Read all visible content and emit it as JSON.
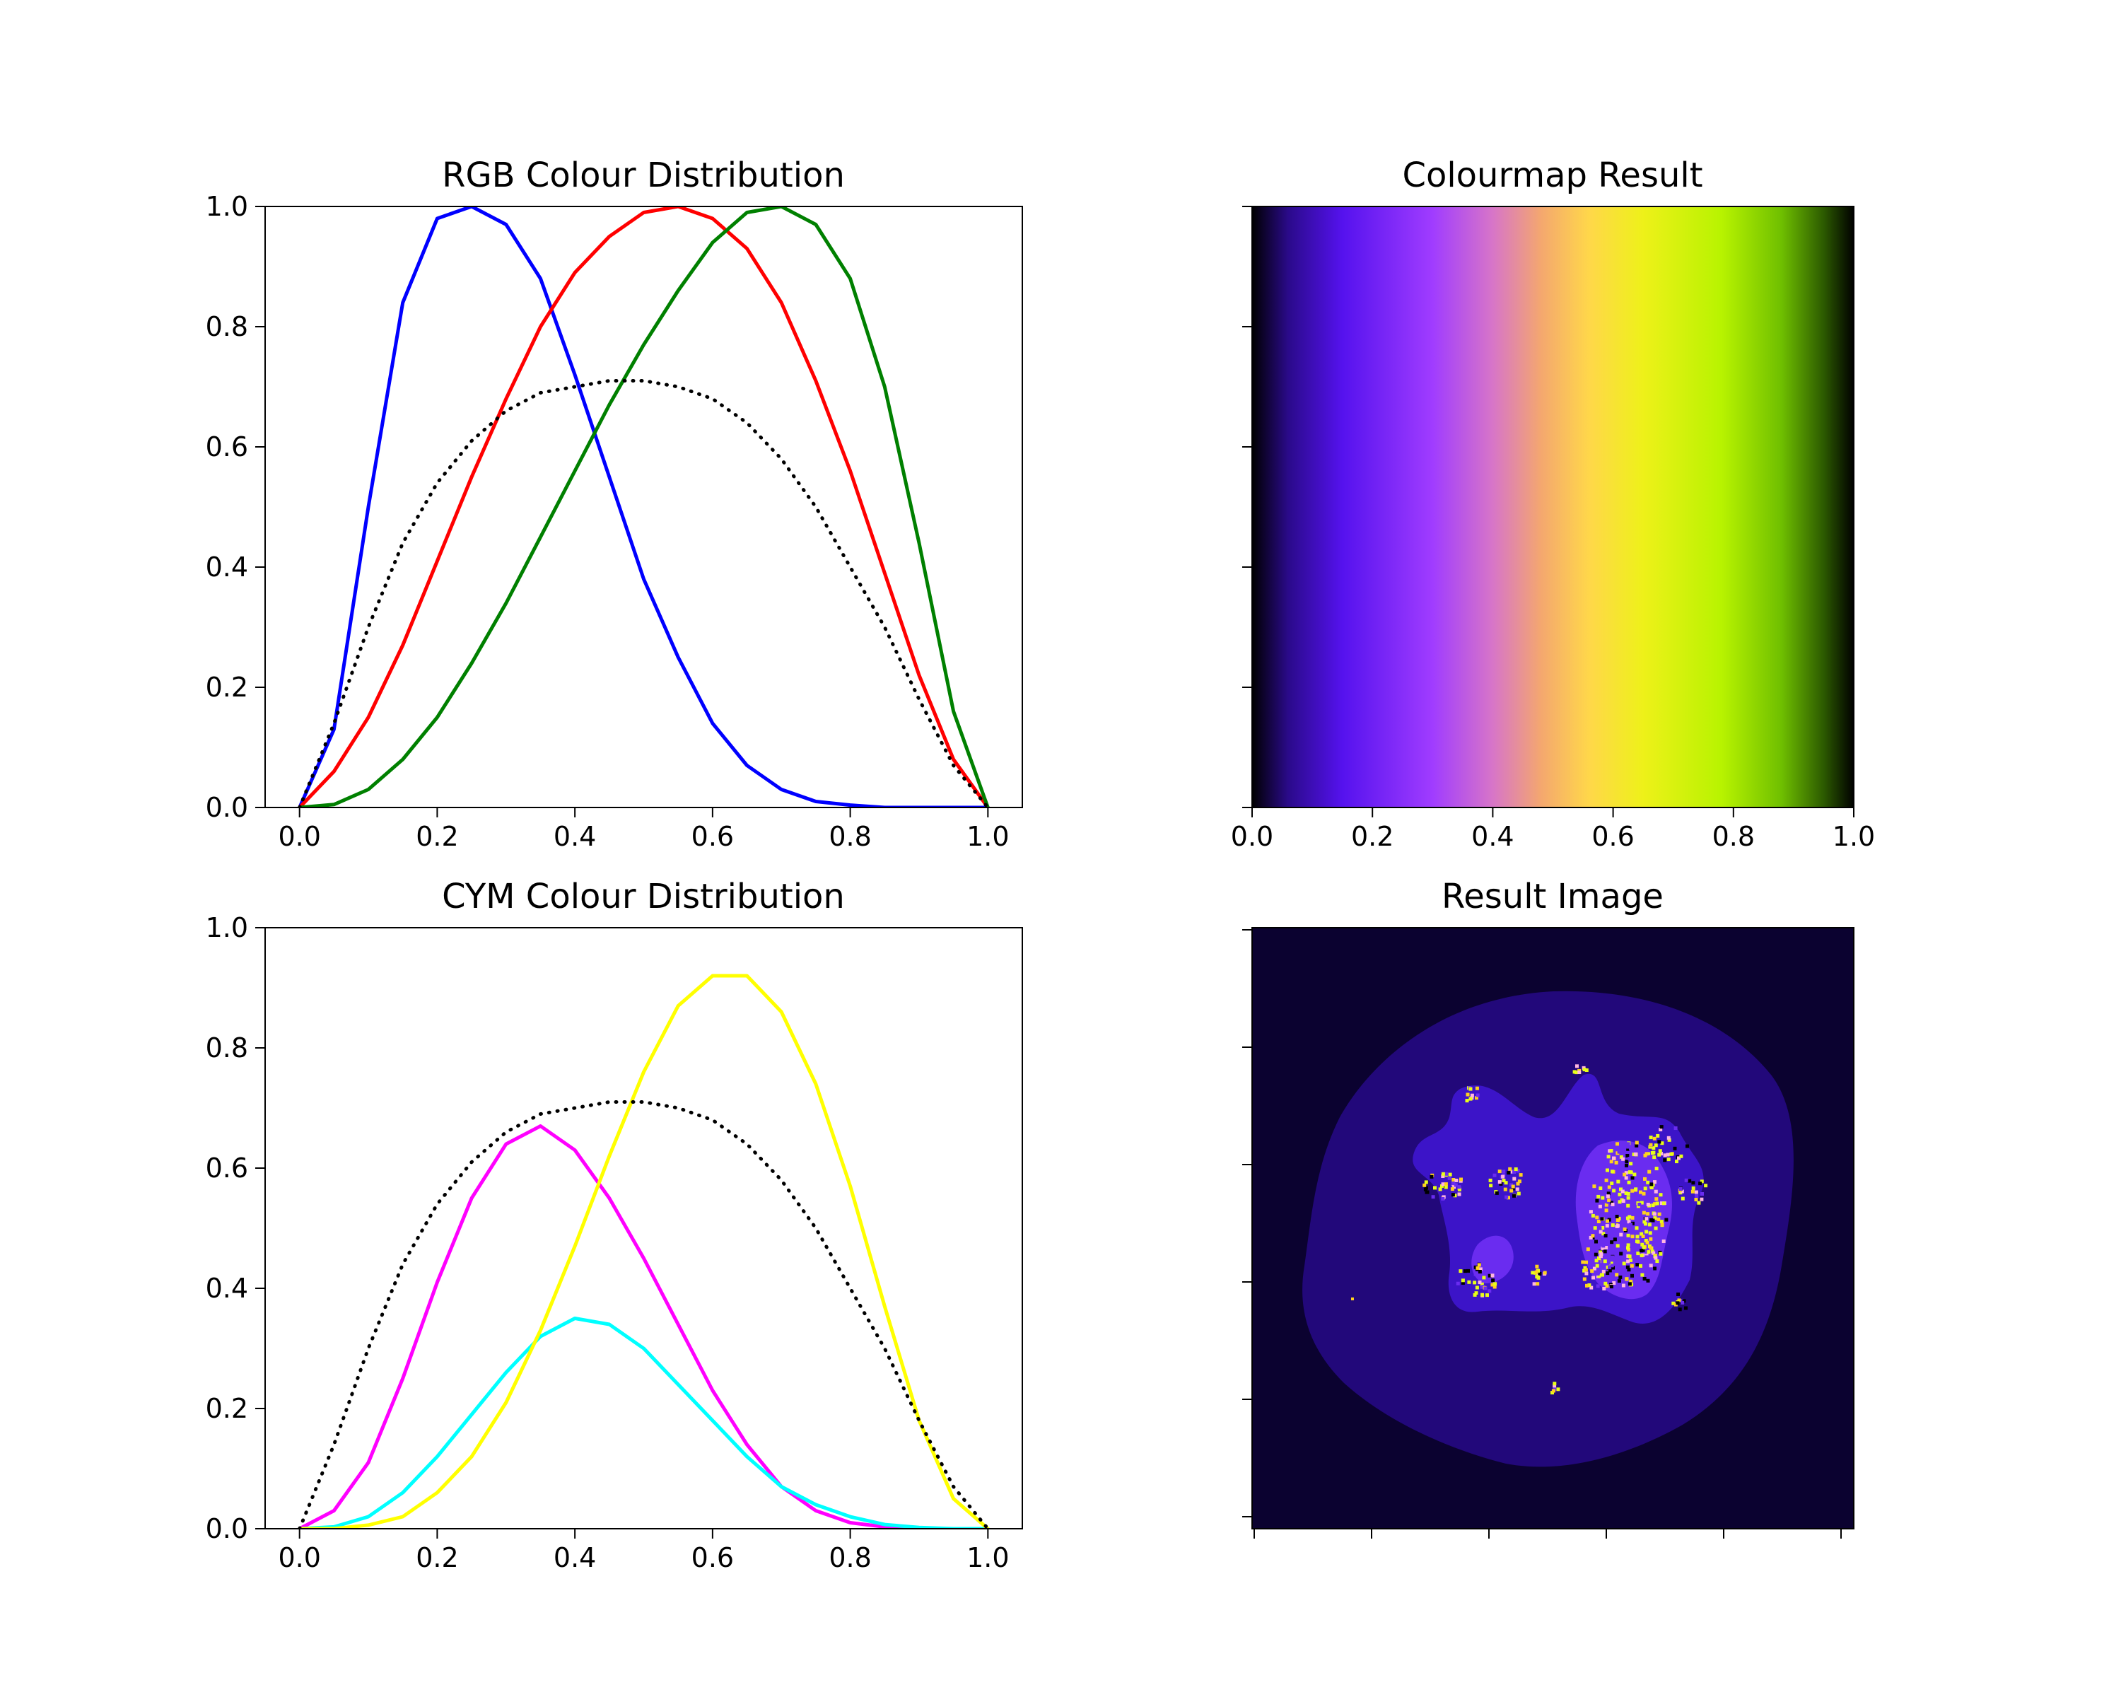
{
  "figure": {
    "background": "#ffffff"
  },
  "chart_data": [
    {
      "id": "rgb",
      "type": "line",
      "title": "RGB Colour Distribution",
      "xlabel": "",
      "ylabel": "",
      "xlim": [
        -0.05,
        1.05
      ],
      "ylim": [
        0,
        1
      ],
      "xticks": [
        "0.0",
        "0.2",
        "0.4",
        "0.6",
        "0.8",
        "1.0"
      ],
      "yticks": [
        "0.0",
        "0.2",
        "0.4",
        "0.6",
        "0.8",
        "1.0"
      ],
      "x": [
        0.0,
        0.05,
        0.1,
        0.15,
        0.2,
        0.25,
        0.3,
        0.35,
        0.4,
        0.45,
        0.5,
        0.55,
        0.6,
        0.65,
        0.7,
        0.75,
        0.8,
        0.85,
        0.9,
        0.95,
        1.0
      ],
      "series": [
        {
          "color": "#0000ff",
          "style": "solid",
          "values": [
            0.0,
            0.13,
            0.5,
            0.84,
            0.98,
            1.0,
            0.97,
            0.88,
            0.72,
            0.55,
            0.38,
            0.25,
            0.14,
            0.07,
            0.03,
            0.01,
            0.004,
            0.0,
            0.0,
            0.0,
            0.0
          ]
        },
        {
          "color": "#ff0000",
          "style": "solid",
          "values": [
            0.0,
            0.06,
            0.15,
            0.27,
            0.41,
            0.55,
            0.68,
            0.8,
            0.89,
            0.95,
            0.99,
            1.0,
            0.98,
            0.93,
            0.84,
            0.71,
            0.56,
            0.39,
            0.22,
            0.08,
            0.0
          ]
        },
        {
          "color": "#008000",
          "style": "solid",
          "values": [
            0.0,
            0.005,
            0.03,
            0.08,
            0.15,
            0.24,
            0.34,
            0.45,
            0.56,
            0.67,
            0.77,
            0.86,
            0.94,
            0.99,
            1.0,
            0.97,
            0.88,
            0.7,
            0.44,
            0.16,
            0.0
          ]
        },
        {
          "color": "#000000",
          "style": "dotted",
          "values": [
            0.0,
            0.14,
            0.3,
            0.44,
            0.54,
            0.61,
            0.66,
            0.69,
            0.7,
            0.71,
            0.71,
            0.7,
            0.68,
            0.64,
            0.58,
            0.5,
            0.4,
            0.3,
            0.18,
            0.07,
            0.0
          ]
        }
      ]
    },
    {
      "id": "cmap",
      "type": "heatmap",
      "title": "Colourmap Result",
      "xlim": [
        0,
        1
      ],
      "xticks": [
        "0.0",
        "0.2",
        "0.4",
        "0.6",
        "0.8",
        "1.0"
      ],
      "y_tick_count": 6,
      "gradient": [
        {
          "t": 0.0,
          "color": "#000000"
        },
        {
          "t": 0.06,
          "color": "#2a0a8a"
        },
        {
          "t": 0.15,
          "color": "#5512ee"
        },
        {
          "t": 0.3,
          "color": "#a03cff"
        },
        {
          "t": 0.4,
          "color": "#d775c8"
        },
        {
          "t": 0.48,
          "color": "#f4a76f"
        },
        {
          "t": 0.56,
          "color": "#ffd74a"
        },
        {
          "t": 0.65,
          "color": "#eef119"
        },
        {
          "t": 0.78,
          "color": "#b8f300"
        },
        {
          "t": 0.88,
          "color": "#6fbf00"
        },
        {
          "t": 0.95,
          "color": "#2c5a00"
        },
        {
          "t": 1.0,
          "color": "#000000"
        }
      ]
    },
    {
      "id": "cym",
      "type": "line",
      "title": "CYM Colour Distribution",
      "xlabel": "",
      "ylabel": "",
      "xlim": [
        -0.05,
        1.05
      ],
      "ylim": [
        0,
        1
      ],
      "xticks": [
        "0.0",
        "0.2",
        "0.4",
        "0.6",
        "0.8",
        "1.0"
      ],
      "yticks": [
        "0.0",
        "0.2",
        "0.4",
        "0.6",
        "0.8",
        "1.0"
      ],
      "x": [
        0.0,
        0.05,
        0.1,
        0.15,
        0.2,
        0.25,
        0.3,
        0.35,
        0.4,
        0.45,
        0.5,
        0.55,
        0.6,
        0.65,
        0.7,
        0.75,
        0.8,
        0.85,
        0.9,
        0.95,
        1.0
      ],
      "series": [
        {
          "color": "#ff00ff",
          "style": "solid",
          "values": [
            0.0,
            0.03,
            0.11,
            0.25,
            0.41,
            0.55,
            0.64,
            0.67,
            0.63,
            0.55,
            0.45,
            0.34,
            0.23,
            0.14,
            0.07,
            0.03,
            0.01,
            0.003,
            0.0,
            0.0,
            0.0
          ]
        },
        {
          "color": "#00ffff",
          "style": "solid",
          "values": [
            0.0,
            0.003,
            0.02,
            0.06,
            0.12,
            0.19,
            0.26,
            0.32,
            0.35,
            0.34,
            0.3,
            0.24,
            0.18,
            0.12,
            0.07,
            0.04,
            0.02,
            0.007,
            0.002,
            0.0,
            0.0
          ]
        },
        {
          "color": "#ffff00",
          "style": "solid",
          "values": [
            0.0,
            0.0,
            0.006,
            0.02,
            0.06,
            0.12,
            0.21,
            0.33,
            0.47,
            0.62,
            0.76,
            0.87,
            0.92,
            0.92,
            0.86,
            0.74,
            0.57,
            0.37,
            0.18,
            0.05,
            0.0
          ]
        },
        {
          "color": "#000000",
          "style": "dotted",
          "values": [
            0.0,
            0.14,
            0.3,
            0.44,
            0.54,
            0.61,
            0.66,
            0.69,
            0.7,
            0.71,
            0.71,
            0.7,
            0.68,
            0.64,
            0.58,
            0.5,
            0.4,
            0.3,
            0.18,
            0.07,
            0.0
          ]
        }
      ]
    },
    {
      "id": "result",
      "type": "heatmap",
      "title": "Result Image",
      "x_tick_count": 6,
      "y_tick_count": 6,
      "colors": {
        "background": "#0b0230",
        "outer_region": "#22087a",
        "inner_region": "#3c14c8",
        "core_region": "#6a2cf0",
        "hot": "#ffd21e",
        "hottest": "#e8ff18",
        "black": "#000000"
      }
    }
  ]
}
